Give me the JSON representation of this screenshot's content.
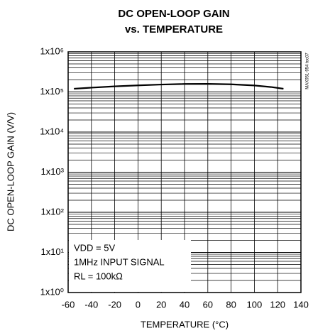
{
  "chart_data": {
    "type": "line",
    "title": "DC OPEN-LOOP GAIN",
    "subtitle": "vs. TEMPERATURE",
    "x_label": "TEMPERATURE (°C)",
    "y_label": "DC OPEN-LOOP GAIN (V/V)",
    "side_note": "MAX951-954 toc07",
    "annotations": [
      "VDD = 5V",
      "1MHz INPUT SIGNAL",
      "RL = 100kΩ"
    ],
    "x": [
      -55,
      -40,
      -20,
      0,
      20,
      40,
      60,
      80,
      100,
      115,
      125
    ],
    "series": [
      {
        "name": "gain",
        "color": "#000000",
        "values": [
          120000,
          128000,
          138000,
          146000,
          153000,
          158000,
          159000,
          155000,
          145000,
          132000,
          120000
        ]
      }
    ],
    "log_y": true,
    "grid": true,
    "xlim": [
      -60,
      140
    ],
    "xticks": [
      -60,
      -40,
      -20,
      0,
      20,
      40,
      60,
      80,
      100,
      120,
      140
    ],
    "ylim": [
      1,
      1000000
    ],
    "yticks": [
      {
        "value": 1,
        "label": "1x10⁰"
      },
      {
        "value": 10,
        "label": "1x10¹"
      },
      {
        "value": 100,
        "label": "1x10²"
      },
      {
        "value": 1000,
        "label": "1x10³"
      },
      {
        "value": 10000,
        "label": "1x10⁴"
      },
      {
        "value": 100000,
        "label": "1x10⁵"
      },
      {
        "value": 1000000,
        "label": "1x10⁶"
      }
    ]
  }
}
